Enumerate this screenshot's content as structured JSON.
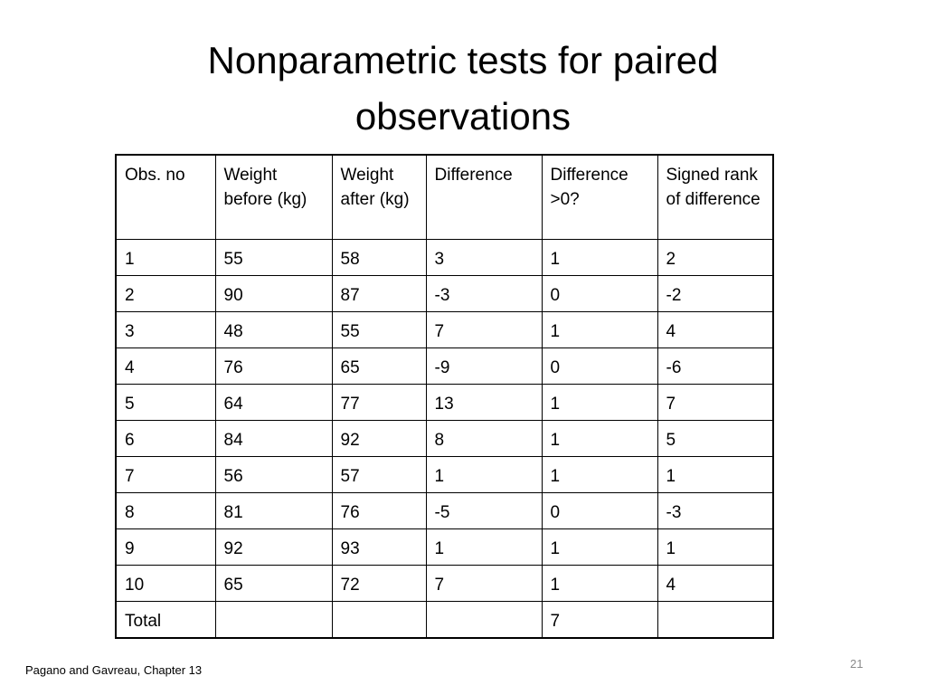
{
  "title": "Nonparametric tests for paired observations",
  "table": {
    "header": [
      "Obs. no",
      "Weight before (kg)",
      "Weight after (kg)",
      "Difference",
      "Difference >0?",
      "Signed rank of difference"
    ],
    "rows": [
      [
        1,
        55,
        58,
        3,
        1,
        2
      ],
      [
        2,
        90,
        87,
        -3,
        0,
        -2
      ],
      [
        3,
        48,
        55,
        7,
        1,
        4
      ],
      [
        4,
        76,
        65,
        -9,
        0,
        -6
      ],
      [
        5,
        64,
        77,
        13,
        1,
        7
      ],
      [
        6,
        84,
        92,
        8,
        1,
        5
      ],
      [
        7,
        56,
        57,
        1,
        1,
        1
      ],
      [
        8,
        81,
        76,
        -5,
        0,
        -3
      ],
      [
        9,
        92,
        93,
        1,
        1,
        1
      ],
      [
        10,
        65,
        72,
        7,
        1,
        4
      ],
      [
        "Total",
        null,
        null,
        null,
        7,
        null
      ]
    ]
  },
  "footer": "Pagano and Gavreau, Chapter 13",
  "page_number": 21
}
